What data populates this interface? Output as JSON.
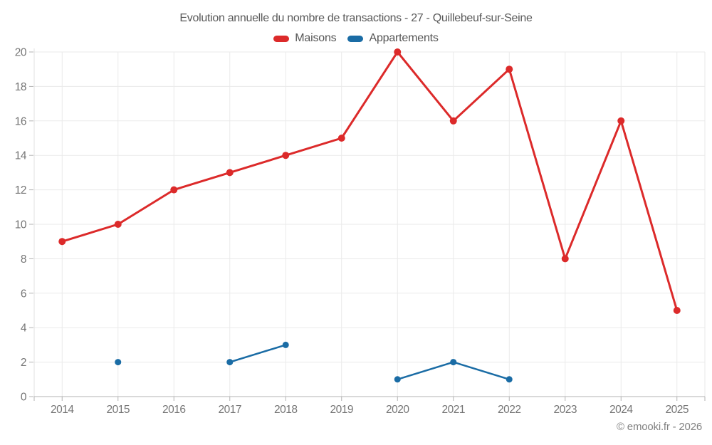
{
  "page": {
    "footer": "© emooki.fr - 2026"
  },
  "chart_data": {
    "type": "line",
    "title": "Evolution annuelle du nombre de transactions - 27 - Quillebeuf-sur-Seine",
    "xlabel": "",
    "ylabel": "",
    "categories": [
      "2014",
      "2015",
      "2016",
      "2017",
      "2018",
      "2019",
      "2020",
      "2021",
      "2022",
      "2023",
      "2024",
      "2025"
    ],
    "series": [
      {
        "name": "Maisons",
        "color": "#dc2a2a",
        "values": [
          9,
          10,
          12,
          13,
          14,
          15,
          20,
          16,
          19,
          8,
          16,
          5
        ],
        "line_width": 3,
        "point_radius": 5
      },
      {
        "name": "Appartements",
        "color": "#1a6ca5",
        "values": [
          null,
          2,
          null,
          2,
          3,
          null,
          1,
          2,
          1,
          null,
          null,
          null
        ],
        "line_width": 2.5,
        "point_radius": 4.5
      }
    ],
    "ylim": [
      0,
      20
    ],
    "y_ticks": [
      0,
      2,
      4,
      6,
      8,
      10,
      12,
      14,
      16,
      18,
      20
    ],
    "grid": true,
    "legend_position": "top"
  }
}
